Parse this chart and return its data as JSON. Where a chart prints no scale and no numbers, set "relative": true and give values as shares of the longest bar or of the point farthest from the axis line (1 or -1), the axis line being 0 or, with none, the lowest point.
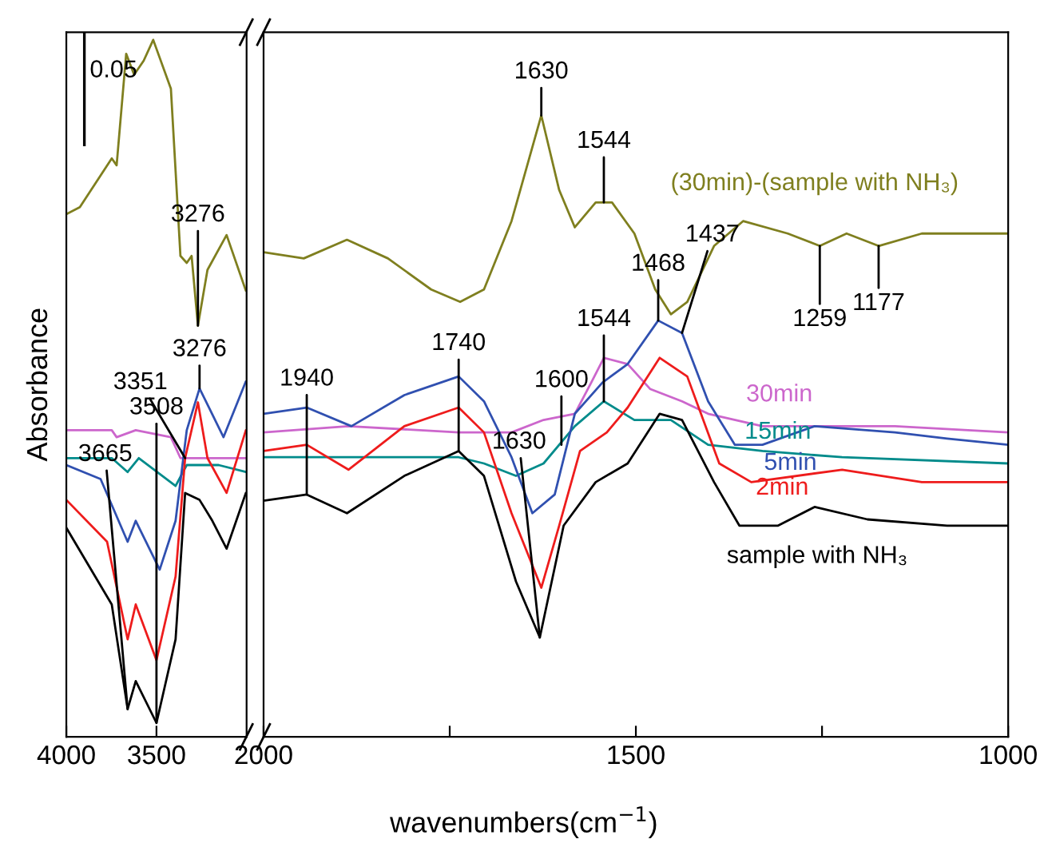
{
  "chart_data": [
    {
      "type": "line",
      "relative": true,
      "ylabel": "Absorbance",
      "xlim": [
        4000,
        3000
      ],
      "xticks": [
        4000,
        3500
      ],
      "legend": false,
      "grid": false,
      "annotations": [
        "0.05",
        {
          "text": "3665",
          "x": 3660,
          "y": 0.04
        },
        {
          "text": "3508",
          "x": 3500,
          "y": 0.02
        },
        {
          "text": "3351",
          "x": 3341,
          "y": 0.4
        },
        {
          "text": "3276",
          "x": 3261,
          "y": 0.5
        },
        {
          "text": "3276",
          "x": 3270,
          "y": 0.59
        }
      ],
      "series": [
        {
          "color": "#7f7f1f",
          "x": [
            4000,
            3925,
            3748,
            3721,
            3668,
            3624,
            3571,
            3518,
            3420,
            3367,
            3332,
            3305,
            3270,
            3217,
            3111,
            3004
          ],
          "values": [
            0.75,
            0.76,
            0.83,
            0.82,
            0.98,
            0.95,
            0.97,
            1.0,
            0.93,
            0.69,
            0.68,
            0.69,
            0.59,
            0.67,
            0.72,
            0.64
          ]
        },
        {
          "color": "#cc66cc",
          "x": [
            4000,
            3748,
            3721,
            3615,
            3420,
            3367,
            3279,
            3004
          ],
          "values": [
            0.44,
            0.44,
            0.43,
            0.44,
            0.43,
            0.4,
            0.4,
            0.4
          ]
        },
        {
          "color": "#008b8b",
          "x": [
            4000,
            3748,
            3660,
            3598,
            3394,
            3332,
            3155,
            3004
          ],
          "values": [
            0.4,
            0.4,
            0.38,
            0.4,
            0.36,
            0.39,
            0.39,
            0.38
          ]
        },
        {
          "color": "#3050b0",
          "x": [
            4000,
            3810,
            3660,
            3615,
            3482,
            3394,
            3332,
            3261,
            3128,
            3004
          ],
          "values": [
            0.39,
            0.37,
            0.28,
            0.31,
            0.24,
            0.31,
            0.44,
            0.5,
            0.43,
            0.51
          ]
        },
        {
          "color": "#ee1c1c",
          "x": [
            4000,
            3774,
            3660,
            3615,
            3500,
            3394,
            3341,
            3270,
            3217,
            3111,
            3004
          ],
          "values": [
            0.34,
            0.28,
            0.14,
            0.19,
            0.11,
            0.23,
            0.4,
            0.48,
            0.4,
            0.35,
            0.44
          ]
        },
        {
          "color": "#000000",
          "x": [
            4000,
            3748,
            3660,
            3615,
            3500,
            3394,
            3341,
            3261,
            3190,
            3111,
            3004
          ],
          "values": [
            0.3,
            0.19,
            0.04,
            0.08,
            0.02,
            0.14,
            0.35,
            0.34,
            0.31,
            0.27,
            0.35
          ]
        }
      ]
    },
    {
      "type": "line",
      "relative": true,
      "xlabel": "wavenumbers(cm$^{−1}$)",
      "xlim": [
        2000,
        1000
      ],
      "xticks": [
        2000,
        {
          "value": 1750,
          "label": null
        },
        1500,
        {
          "value": 1250,
          "label": null
        },
        1000
      ],
      "legend": false,
      "grid": false,
      "annotations": [
        {
          "text": "1940",
          "x": 1942,
          "y": 0.39
        },
        {
          "text": "1740",
          "x": 1738,
          "y": 0.46
        },
        {
          "text": "1630",
          "x": 1629,
          "y": 0.16
        },
        {
          "text": "1600",
          "x": 1600,
          "y": 0.47
        },
        {
          "text": "1544",
          "x": 1543,
          "y": 0.54
        },
        {
          "text": "1468",
          "x": 1470,
          "y": 0.67
        },
        {
          "text": "1437",
          "x": 1438,
          "y": 0.65
        },
        {
          "text": "1630",
          "x": 1627,
          "y": 1.0
        },
        {
          "text": "1544",
          "x": 1543,
          "y": 0.86
        },
        {
          "text": "1259",
          "x": 1253,
          "y": 0.79
        },
        {
          "text": "1177",
          "x": 1174,
          "y": 0.79
        }
      ],
      "series": [
        {
          "name": "(30min)-(sample with NH₃)",
          "color": "#7f7f1f",
          "x": [
            2000,
            1946,
            1888,
            1833,
            1775,
            1736,
            1704,
            1667,
            1627,
            1603,
            1582,
            1554,
            1532,
            1502,
            1474,
            1453,
            1431,
            1395,
            1356,
            1296,
            1253,
            1217,
            1174,
            1116,
            1060,
            1000
          ],
          "values": [
            0.78,
            0.77,
            0.8,
            0.77,
            0.72,
            0.7,
            0.72,
            0.83,
            1.0,
            0.88,
            0.82,
            0.86,
            0.86,
            0.81,
            0.72,
            0.68,
            0.7,
            0.79,
            0.83,
            0.81,
            0.79,
            0.81,
            0.79,
            0.81,
            0.81,
            0.81
          ]
        },
        {
          "name": "30min",
          "color": "#cc66cc",
          "x": [
            2000,
            1886,
            1738,
            1667,
            1624,
            1582,
            1560,
            1543,
            1511,
            1481,
            1438,
            1403,
            1330,
            1260,
            1152,
            1000
          ],
          "values": [
            0.49,
            0.5,
            0.49,
            0.49,
            0.51,
            0.52,
            0.57,
            0.61,
            0.6,
            0.56,
            0.54,
            0.52,
            0.5,
            0.5,
            0.5,
            0.49
          ]
        },
        {
          "name": "15min",
          "color": "#008b8b",
          "x": [
            2000,
            1867,
            1738,
            1704,
            1661,
            1624,
            1582,
            1543,
            1502,
            1453,
            1403,
            1330,
            1223,
            1000
          ],
          "values": [
            0.45,
            0.45,
            0.45,
            0.44,
            0.42,
            0.44,
            0.5,
            0.54,
            0.51,
            0.51,
            0.47,
            0.46,
            0.45,
            0.44
          ]
        },
        {
          "name": "5min",
          "color": "#3050b0",
          "x": [
            2000,
            1942,
            1882,
            1811,
            1738,
            1704,
            1667,
            1639,
            1609,
            1582,
            1545,
            1511,
            1470,
            1438,
            1403,
            1367,
            1330,
            1260,
            1152,
            1082,
            1000
          ],
          "values": [
            0.52,
            0.53,
            0.5,
            0.55,
            0.58,
            0.54,
            0.45,
            0.36,
            0.39,
            0.52,
            0.57,
            0.6,
            0.67,
            0.65,
            0.54,
            0.47,
            0.47,
            0.5,
            0.49,
            0.48,
            0.47
          ]
        },
        {
          "name": "2min",
          "color": "#ee1c1c",
          "x": [
            2000,
            1942,
            1886,
            1811,
            1738,
            1704,
            1667,
            1627,
            1603,
            1575,
            1539,
            1511,
            1468,
            1431,
            1388,
            1345,
            1223,
            1116,
            1000
          ],
          "values": [
            0.46,
            0.47,
            0.43,
            0.5,
            0.53,
            0.49,
            0.36,
            0.24,
            0.34,
            0.46,
            0.49,
            0.53,
            0.61,
            0.58,
            0.44,
            0.41,
            0.43,
            0.41,
            0.41
          ]
        },
        {
          "name": "sample with NH₃",
          "color": "#000000",
          "x": [
            2000,
            1942,
            1888,
            1811,
            1738,
            1704,
            1661,
            1629,
            1597,
            1554,
            1511,
            1468,
            1438,
            1395,
            1361,
            1309,
            1260,
            1189,
            1082,
            1000
          ],
          "values": [
            0.38,
            0.39,
            0.36,
            0.42,
            0.46,
            0.42,
            0.25,
            0.16,
            0.34,
            0.41,
            0.44,
            0.52,
            0.51,
            0.41,
            0.34,
            0.34,
            0.37,
            0.35,
            0.34,
            0.34
          ]
        }
      ]
    }
  ]
}
